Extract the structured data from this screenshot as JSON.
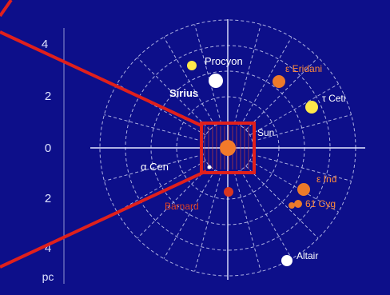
{
  "colors": {
    "background": "#0d0f8a",
    "grid": "#c9cdf2",
    "axis_label": "#dfe3ff",
    "highlight": "#e0201c",
    "white_star": "#ffffff",
    "yellow_star": "#ffe84a",
    "orange_star": "#ec7a2a",
    "red_star": "#d9361f",
    "orange_label": "#ff8a3a",
    "red_label": "#e04020"
  },
  "axis": {
    "ticks": [
      "4",
      "2",
      "0",
      "2",
      "4"
    ],
    "unit": "pc"
  },
  "stars": [
    {
      "id": "procyon",
      "label": "Procyon",
      "color": "white_star",
      "label_color": "white_star"
    },
    {
      "id": "procyon-b",
      "label": "",
      "color": "yellow_star",
      "label_color": "white_star"
    },
    {
      "id": "sirius",
      "label": "Sirius",
      "color": "white_star",
      "label_color": "white_star"
    },
    {
      "id": "eps-eri",
      "label": "ε Eridani",
      "color": "orange_star",
      "label_color": "orange_label"
    },
    {
      "id": "tau-ceti",
      "label": "τ Ceti",
      "color": "yellow_star",
      "label_color": "white_star"
    },
    {
      "id": "sun",
      "label": "Sun",
      "color": "orange_star",
      "label_color": "white_star"
    },
    {
      "id": "alpha-cen",
      "label": "α Cen",
      "color": "white_star",
      "label_color": "white_star"
    },
    {
      "id": "eps-ind",
      "label": "ε Ind",
      "color": "orange_star",
      "label_color": "orange_label"
    },
    {
      "id": "cyg-61",
      "label": "61 Cyg",
      "color": "orange_star",
      "label_color": "orange_label"
    },
    {
      "id": "barnard",
      "label": "Barnard",
      "color": "red_star",
      "label_color": "red_label"
    },
    {
      "id": "altair",
      "label": "Altair",
      "color": "white_star",
      "label_color": "white_star"
    }
  ]
}
